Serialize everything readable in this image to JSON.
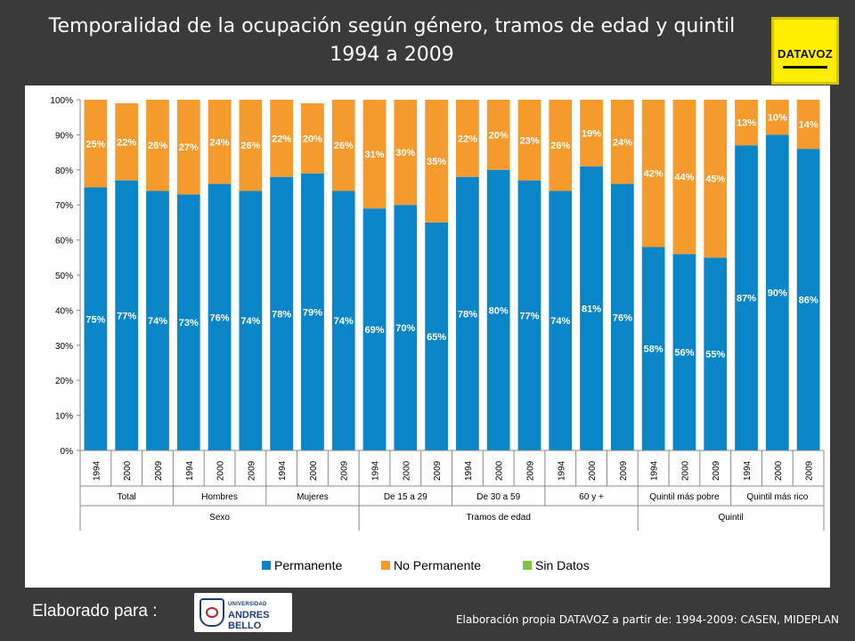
{
  "title_line1": "Temporalidad de la ocupación según género, tramos de edad y quintil",
  "title_line2": "1994 a 2009",
  "logo_text": "DATAVOZ",
  "footer": {
    "elaborado": "Elaborado para :",
    "unab_small": "UNIVERSIDAD",
    "unab_big": "ANDRES BELLO",
    "source": "Elaboración propia DATAVOZ a partir de: 1994-2009: CASEN, MIDEPLAN"
  },
  "colors": {
    "background": "#3a3a3a",
    "permanente": "#0a85c7",
    "no_permanente": "#f59a2c",
    "sin_datos": "#80c342"
  },
  "chart_data": {
    "type": "bar",
    "stacked": true,
    "y_ticks": [
      "0%",
      "10%",
      "20%",
      "30%",
      "40%",
      "50%",
      "60%",
      "70%",
      "80%",
      "90%",
      "100%"
    ],
    "ylim": [
      0,
      100
    ],
    "categories": [
      "1994",
      "2000",
      "2009",
      "1994",
      "2000",
      "2009",
      "1994",
      "2000",
      "2009",
      "1994",
      "2000",
      "2009",
      "1994",
      "2000",
      "2009",
      "1994",
      "2000",
      "2009",
      "1994",
      "2000",
      "2009",
      "1994",
      "2000",
      "2009"
    ],
    "subgroups": [
      {
        "label": "Total",
        "count": 3
      },
      {
        "label": "Hombres",
        "count": 3
      },
      {
        "label": "Mujeres",
        "count": 3
      },
      {
        "label": "De 15 a 29",
        "count": 3
      },
      {
        "label": "De 30 a 59",
        "count": 3
      },
      {
        "label": "60 y +",
        "count": 3
      },
      {
        "label": "Quintil más pobre",
        "count": 3
      },
      {
        "label": "Quintil más rico",
        "count": 3
      }
    ],
    "groups": [
      {
        "label": "Sexo",
        "count": 9
      },
      {
        "label": "Tramos de edad",
        "count": 9
      },
      {
        "label": "Quintil",
        "count": 6
      }
    ],
    "series": [
      {
        "name": "Permanente",
        "values": [
          75,
          77,
          74,
          73,
          76,
          74,
          78,
          79,
          74,
          69,
          70,
          65,
          78,
          80,
          77,
          74,
          81,
          76,
          58,
          56,
          55,
          87,
          90,
          86
        ],
        "labels": [
          "75%",
          "77%",
          "74%",
          "73%",
          "76%",
          "74%",
          "78%",
          "79%",
          "74%",
          "69%",
          "70%",
          "65%",
          "78%",
          "80%",
          "77%",
          "74%",
          "81%",
          "76%",
          "58%",
          "56%",
          "55%",
          "87%",
          "90%",
          "86%"
        ]
      },
      {
        "name": "No Permanente",
        "values": [
          25,
          22,
          26,
          27,
          24,
          26,
          22,
          20,
          26,
          31,
          30,
          35,
          22,
          20,
          23,
          26,
          19,
          24,
          42,
          44,
          45,
          13,
          10,
          14
        ],
        "labels": [
          "25%",
          "22%",
          "26%",
          "27%",
          "24%",
          "26%",
          "22%",
          "20%",
          "26%",
          "31%",
          "30%",
          "35%",
          "22%",
          "20%",
          "23%",
          "26%",
          "19%",
          "24%",
          "42%",
          "44%",
          "45%",
          "13%",
          "10%",
          "14%"
        ]
      },
      {
        "name": "Sin Datos",
        "values": [
          0,
          0,
          0,
          0,
          0,
          0,
          0,
          0,
          0,
          0,
          0,
          0,
          0,
          0,
          0,
          0,
          0,
          0,
          0,
          0,
          0,
          0,
          0,
          0
        ]
      }
    ],
    "legend_position": "bottom"
  }
}
